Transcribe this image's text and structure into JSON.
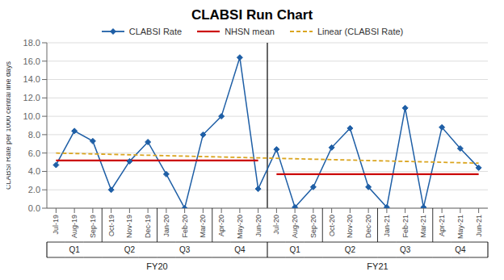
{
  "chart_data": {
    "type": "line",
    "title": "CLABSI Run Chart",
    "ylabel": "CLABSI Rate per 1000 central line days",
    "categories": [
      "Jul-19",
      "Aug-19",
      "Sep-19",
      "Oct-19",
      "Nov-19",
      "Dec-19",
      "Jan-20",
      "Feb-20",
      "Mar-20",
      "Apr-20",
      "May-20",
      "Jun-20",
      "Jul-20",
      "Aug-20",
      "Sep-20",
      "Oct-20",
      "Nov-20",
      "Dec-20",
      "Jan-21",
      "Feb-21",
      "Mar-21",
      "Apr-21",
      "May-21",
      "Jun-21"
    ],
    "series": [
      {
        "name": "CLABSI Rate",
        "type": "line",
        "color": "#1f5fa6",
        "marker": "diamond",
        "line_style": "solid",
        "values": [
          4.7,
          8.4,
          7.3,
          2.0,
          5.1,
          7.2,
          3.7,
          0.0,
          8.0,
          10.0,
          16.4,
          2.1,
          6.4,
          0.1,
          2.3,
          6.6,
          8.7,
          2.3,
          0.1,
          10.9,
          0.1,
          8.8,
          6.5,
          4.4
        ]
      },
      {
        "name": "NHSN mean",
        "type": "segment",
        "color": "#cc0000",
        "line_style": "solid",
        "values": [
          5.2,
          5.2,
          5.2,
          5.2,
          5.2,
          5.2,
          5.2,
          5.2,
          5.2,
          5.2,
          5.2,
          5.2,
          3.7,
          3.7,
          3.7,
          3.7,
          3.7,
          3.7,
          3.7,
          3.7,
          3.7,
          3.7,
          3.7,
          3.7
        ]
      },
      {
        "name": "Linear (CLABSI Rate)",
        "type": "line",
        "color": "#daa520",
        "line_style": "dashed",
        "values": [
          6.0,
          null,
          null,
          null,
          null,
          null,
          null,
          null,
          null,
          null,
          null,
          null,
          null,
          null,
          null,
          null,
          null,
          null,
          null,
          null,
          null,
          null,
          null,
          4.9
        ]
      }
    ],
    "quarter_labels": [
      "Q1",
      "Q2",
      "Q3",
      "Q4",
      "Q1",
      "Q2",
      "Q3",
      "Q4"
    ],
    "fy_labels": [
      "FY20",
      "FY21"
    ],
    "ylim": [
      0,
      18.0
    ],
    "yticks": [
      {
        "value": 0,
        "label": "0.0"
      },
      {
        "value": 2,
        "label": "2.0"
      },
      {
        "value": 4,
        "label": "4.0"
      },
      {
        "value": 6,
        "label": "6.0"
      },
      {
        "value": 8,
        "label": "8.0"
      },
      {
        "value": 10,
        "label": "10.0"
      },
      {
        "value": 12,
        "label": "12.0"
      },
      {
        "value": 14,
        "label": "14.0"
      },
      {
        "value": 16,
        "label": "16.0"
      },
      {
        "value": 18,
        "label": "18.0"
      }
    ],
    "grid": true
  }
}
